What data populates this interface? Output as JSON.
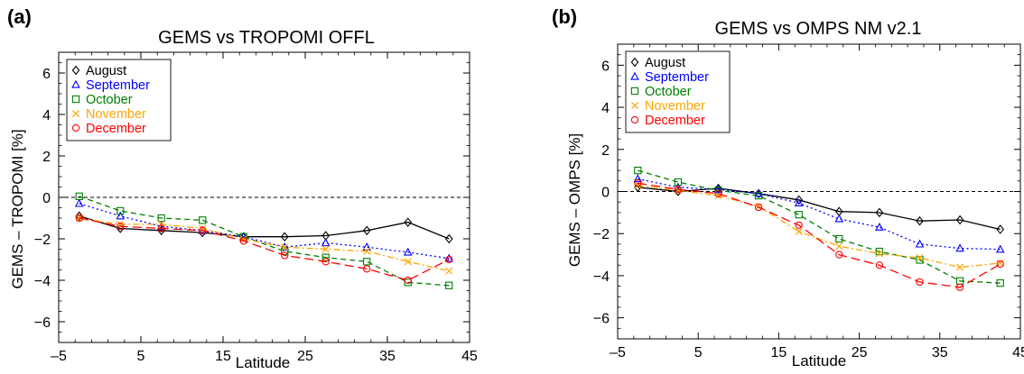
{
  "chart_data": [
    {
      "panel_label": "(a)",
      "type": "line",
      "title": "GEMS vs TROPOMI OFFL",
      "xlabel": "Latitude",
      "ylabel": "GEMS – TROPOMI [%]",
      "xlim": [
        -5,
        45
      ],
      "ylim": [
        -7,
        7
      ],
      "xticks": [
        -5,
        5,
        15,
        25,
        35,
        45
      ],
      "xtick_labels": [
        "–5",
        "5",
        "15",
        "25",
        "35",
        "45"
      ],
      "yticks": [
        -6,
        -4,
        -2,
        0,
        2,
        4,
        6
      ],
      "ytick_labels": [
        "−6",
        "−4",
        "−2",
        "0",
        "2",
        "4",
        "6"
      ],
      "reference_line_y": 0,
      "legend_position": "top-left",
      "x": [
        -2.5,
        2.5,
        7.5,
        12.5,
        17.5,
        22.5,
        27.5,
        32.5,
        37.5,
        42.5
      ],
      "series": [
        {
          "name": "August",
          "color": "#000000",
          "marker": "diamond",
          "dash": "solid",
          "values": [
            -0.9,
            -1.5,
            -1.6,
            -1.7,
            -1.9,
            -1.9,
            -1.85,
            -1.6,
            -1.2,
            -2.0
          ]
        },
        {
          "name": "September",
          "color": "#0000ff",
          "marker": "triangle",
          "dash": "dotted",
          "values": [
            -0.3,
            -0.9,
            -1.4,
            -1.6,
            -1.9,
            -2.4,
            -2.2,
            -2.4,
            -2.65,
            -2.95
          ]
        },
        {
          "name": "October",
          "color": "#008000",
          "marker": "square",
          "dash": "dashed",
          "values": [
            0.05,
            -0.65,
            -1.0,
            -1.1,
            -1.9,
            -2.6,
            -2.9,
            -3.1,
            -4.1,
            -4.25
          ]
        },
        {
          "name": "November",
          "color": "#ffa500",
          "marker": "x",
          "dash": "dashdot",
          "values": [
            -1.0,
            -1.3,
            -1.3,
            -1.5,
            -2.0,
            -2.4,
            -2.5,
            -2.6,
            -3.1,
            -3.55
          ]
        },
        {
          "name": "December",
          "color": "#ff0000",
          "marker": "circle",
          "dash": "longdash",
          "values": [
            -1.0,
            -1.4,
            -1.5,
            -1.6,
            -2.1,
            -2.8,
            -3.1,
            -3.45,
            -4.0,
            -3.0
          ]
        }
      ]
    },
    {
      "panel_label": "(b)",
      "type": "line",
      "title": "GEMS vs OMPS NM v2.1",
      "xlabel": "Latitude",
      "ylabel": "GEMS – OMPS [%]",
      "xlim": [
        -5,
        45
      ],
      "ylim": [
        -7,
        7
      ],
      "xticks": [
        -5,
        5,
        15,
        25,
        35,
        45
      ],
      "xtick_labels": [
        "–5",
        "5",
        "15",
        "25",
        "35",
        "45"
      ],
      "yticks": [
        -6,
        -4,
        -2,
        0,
        2,
        4,
        6
      ],
      "ytick_labels": [
        "−6",
        "−4",
        "−2",
        "0",
        "2",
        "4",
        "6"
      ],
      "reference_line_y": 0,
      "legend_position": "top-left",
      "x": [
        -2.5,
        2.5,
        7.5,
        12.5,
        17.5,
        22.5,
        27.5,
        32.5,
        37.5,
        42.5
      ],
      "series": [
        {
          "name": "August",
          "color": "#000000",
          "marker": "diamond",
          "dash": "solid",
          "values": [
            0.2,
            0.0,
            0.15,
            -0.1,
            -0.4,
            -0.95,
            -1.0,
            -1.4,
            -1.35,
            -1.8
          ]
        },
        {
          "name": "September",
          "color": "#0000ff",
          "marker": "triangle",
          "dash": "dotted",
          "values": [
            0.6,
            0.2,
            0.1,
            -0.1,
            -0.55,
            -1.3,
            -1.7,
            -2.5,
            -2.7,
            -2.75
          ]
        },
        {
          "name": "October",
          "color": "#008000",
          "marker": "square",
          "dash": "dashed",
          "values": [
            1.0,
            0.45,
            0.05,
            -0.2,
            -1.1,
            -2.25,
            -2.85,
            -3.25,
            -4.25,
            -4.35
          ]
        },
        {
          "name": "November",
          "color": "#ffa500",
          "marker": "x",
          "dash": "dashdot",
          "values": [
            0.3,
            0.05,
            -0.2,
            -0.7,
            -1.9,
            -2.6,
            -2.95,
            -3.15,
            -3.6,
            -3.4
          ]
        },
        {
          "name": "December",
          "color": "#ff0000",
          "marker": "circle",
          "dash": "longdash",
          "values": [
            0.4,
            0.1,
            -0.1,
            -0.75,
            -1.6,
            -3.0,
            -3.5,
            -4.3,
            -4.55,
            -3.45
          ]
        }
      ]
    }
  ]
}
